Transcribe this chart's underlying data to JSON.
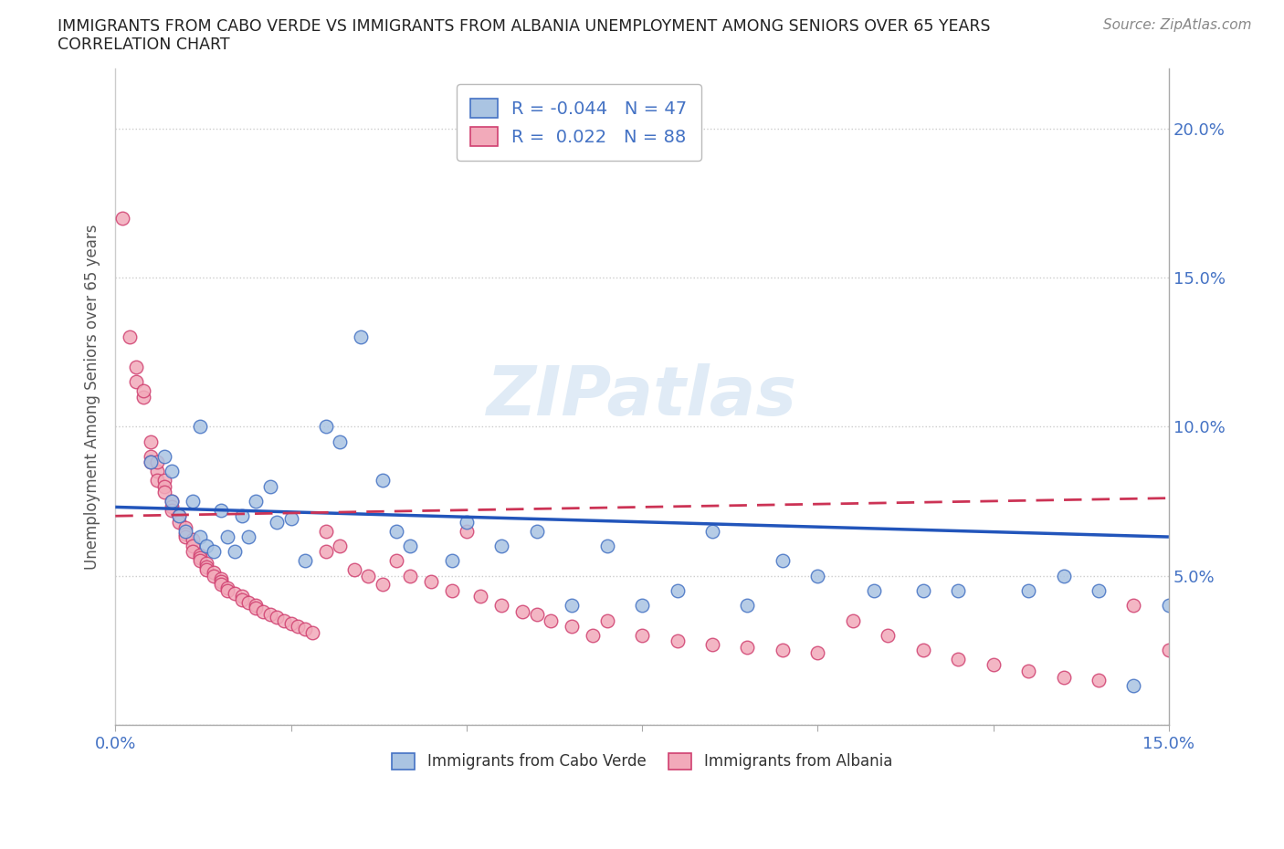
{
  "title_line1": "IMMIGRANTS FROM CABO VERDE VS IMMIGRANTS FROM ALBANIA UNEMPLOYMENT AMONG SENIORS OVER 65 YEARS",
  "title_line2": "CORRELATION CHART",
  "source_text": "Source: ZipAtlas.com",
  "xmin": 0.0,
  "xmax": 0.15,
  "ymin": 0.0,
  "ymax": 0.22,
  "watermark": "ZIPatlas",
  "legend_cabo_r": "-0.044",
  "legend_cabo_n": "47",
  "legend_albania_r": "0.022",
  "legend_albania_n": "88",
  "cabo_verde_color": "#aac4e2",
  "albania_color": "#f2aaba",
  "cabo_verde_edge_color": "#4472c4",
  "albania_edge_color": "#d04070",
  "cabo_verde_line_color": "#2255bb",
  "albania_line_color": "#cc3355",
  "cabo_verde_x": [
    0.005,
    0.007,
    0.008,
    0.009,
    0.01,
    0.011,
    0.012,
    0.013,
    0.014,
    0.015,
    0.016,
    0.017,
    0.018,
    0.019,
    0.02,
    0.022,
    0.023,
    0.025,
    0.027,
    0.03,
    0.032,
    0.035,
    0.04,
    0.042,
    0.048,
    0.05,
    0.055,
    0.06,
    0.065,
    0.07,
    0.075,
    0.08,
    0.085,
    0.09,
    0.095,
    0.1,
    0.108,
    0.115,
    0.12,
    0.13,
    0.135,
    0.14,
    0.145,
    0.15,
    0.008,
    0.012,
    0.038
  ],
  "cabo_verde_y": [
    0.088,
    0.09,
    0.085,
    0.07,
    0.065,
    0.075,
    0.063,
    0.06,
    0.058,
    0.072,
    0.063,
    0.058,
    0.07,
    0.063,
    0.075,
    0.08,
    0.068,
    0.069,
    0.055,
    0.1,
    0.095,
    0.13,
    0.065,
    0.06,
    0.055,
    0.068,
    0.06,
    0.065,
    0.04,
    0.06,
    0.04,
    0.045,
    0.065,
    0.04,
    0.055,
    0.05,
    0.045,
    0.045,
    0.045,
    0.045,
    0.05,
    0.045,
    0.013,
    0.04,
    0.075,
    0.1,
    0.082
  ],
  "albania_x": [
    0.001,
    0.002,
    0.003,
    0.003,
    0.004,
    0.004,
    0.005,
    0.005,
    0.005,
    0.006,
    0.006,
    0.006,
    0.007,
    0.007,
    0.007,
    0.008,
    0.008,
    0.008,
    0.009,
    0.009,
    0.01,
    0.01,
    0.01,
    0.011,
    0.011,
    0.011,
    0.012,
    0.012,
    0.012,
    0.013,
    0.013,
    0.013,
    0.014,
    0.014,
    0.015,
    0.015,
    0.015,
    0.016,
    0.016,
    0.017,
    0.018,
    0.018,
    0.019,
    0.02,
    0.02,
    0.021,
    0.022,
    0.023,
    0.024,
    0.025,
    0.026,
    0.027,
    0.028,
    0.03,
    0.03,
    0.032,
    0.034,
    0.036,
    0.038,
    0.04,
    0.042,
    0.045,
    0.048,
    0.05,
    0.052,
    0.055,
    0.058,
    0.06,
    0.062,
    0.065,
    0.068,
    0.07,
    0.075,
    0.08,
    0.085,
    0.09,
    0.095,
    0.1,
    0.105,
    0.11,
    0.115,
    0.12,
    0.125,
    0.13,
    0.135,
    0.14,
    0.145,
    0.15
  ],
  "albania_y": [
    0.17,
    0.13,
    0.115,
    0.12,
    0.11,
    0.112,
    0.09,
    0.095,
    0.088,
    0.085,
    0.088,
    0.082,
    0.082,
    0.08,
    0.078,
    0.075,
    0.073,
    0.072,
    0.07,
    0.068,
    0.066,
    0.064,
    0.063,
    0.062,
    0.06,
    0.058,
    0.057,
    0.056,
    0.055,
    0.054,
    0.053,
    0.052,
    0.051,
    0.05,
    0.049,
    0.048,
    0.047,
    0.046,
    0.045,
    0.044,
    0.043,
    0.042,
    0.041,
    0.04,
    0.039,
    0.038,
    0.037,
    0.036,
    0.035,
    0.034,
    0.033,
    0.032,
    0.031,
    0.065,
    0.058,
    0.06,
    0.052,
    0.05,
    0.047,
    0.055,
    0.05,
    0.048,
    0.045,
    0.065,
    0.043,
    0.04,
    0.038,
    0.037,
    0.035,
    0.033,
    0.03,
    0.035,
    0.03,
    0.028,
    0.027,
    0.026,
    0.025,
    0.024,
    0.035,
    0.03,
    0.025,
    0.022,
    0.02,
    0.018,
    0.016,
    0.015,
    0.04,
    0.025
  ],
  "cabo_trend_x0": 0.0,
  "cabo_trend_x1": 0.15,
  "cabo_trend_y0": 0.073,
  "cabo_trend_y1": 0.063,
  "albania_trend_x0": 0.0,
  "albania_trend_x1": 0.15,
  "albania_trend_y0": 0.07,
  "albania_trend_y1": 0.076
}
